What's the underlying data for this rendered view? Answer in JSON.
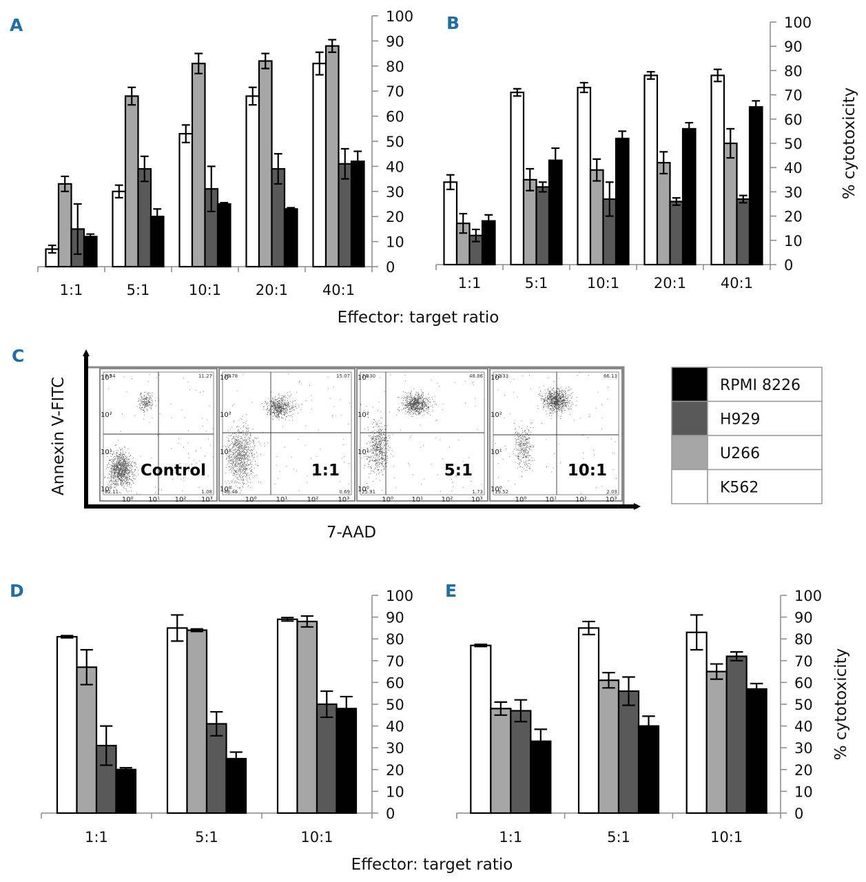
{
  "colors": {
    "K562": "#ffffff",
    "U266": "#a6a6a6",
    "H929": "#595959",
    "RPMI 8226": "#000000",
    "panel_letter": "#1f6ea8"
  },
  "shared_xlabel_top": "Effector: target ratio",
  "shared_xlabel_bottom": "Effector: target ratio",
  "chart_data": [
    {
      "panel": "A",
      "type": "bar",
      "ylim": [
        0,
        100
      ],
      "yticks": [
        0,
        10,
        20,
        30,
        40,
        50,
        60,
        70,
        80,
        90,
        100
      ],
      "categories": [
        "1:1",
        "5:1",
        "10:1",
        "20:1",
        "40:1"
      ],
      "ylabel": "",
      "series": [
        {
          "name": "K562",
          "values": [
            7,
            30,
            53,
            68,
            81
          ],
          "errors": [
            1.5,
            2.5,
            3.5,
            3.5,
            4.5
          ]
        },
        {
          "name": "U266",
          "values": [
            33,
            68,
            81,
            82,
            88
          ],
          "errors": [
            3,
            3.5,
            4,
            3,
            2.5
          ]
        },
        {
          "name": "H929",
          "values": [
            15,
            39,
            31,
            39,
            41
          ],
          "errors": [
            10,
            5,
            9,
            6,
            6
          ]
        },
        {
          "name": "RPMI 8226",
          "values": [
            12,
            20,
            25,
            23,
            42
          ],
          "errors": [
            1,
            3,
            0.5,
            0.5,
            4
          ]
        }
      ]
    },
    {
      "panel": "B",
      "type": "bar",
      "ylim": [
        0,
        100
      ],
      "yticks": [
        0,
        10,
        20,
        30,
        40,
        50,
        60,
        70,
        80,
        90,
        100
      ],
      "categories": [
        "1:1",
        "5:1",
        "10:1",
        "20:1",
        "40:1"
      ],
      "ylabel": "% cytotoxicity",
      "series": [
        {
          "name": "K562",
          "values": [
            34,
            71,
            73,
            78,
            78
          ],
          "errors": [
            3,
            1.5,
            2,
            1.5,
            2.5
          ]
        },
        {
          "name": "U266",
          "values": [
            17,
            35,
            39,
            42,
            50
          ],
          "errors": [
            4,
            4.5,
            4.5,
            4.5,
            6
          ]
        },
        {
          "name": "H929",
          "values": [
            12,
            32,
            27,
            26,
            27
          ],
          "errors": [
            2.5,
            2,
            7,
            1.5,
            1.5
          ]
        },
        {
          "name": "RPMI 8226",
          "values": [
            18,
            43,
            52,
            56,
            65
          ],
          "errors": [
            2.5,
            5,
            3,
            2.5,
            2.5
          ]
        }
      ]
    },
    {
      "panel": "D",
      "type": "bar",
      "ylim": [
        0,
        100
      ],
      "yticks": [
        0,
        10,
        20,
        30,
        40,
        50,
        60,
        70,
        80,
        90,
        100
      ],
      "categories": [
        "1:1",
        "5:1",
        "10:1"
      ],
      "ylabel": "",
      "series": [
        {
          "name": "K562",
          "values": [
            81,
            85,
            89
          ],
          "errors": [
            0.5,
            6,
            0.8
          ]
        },
        {
          "name": "U266",
          "values": [
            67,
            84,
            88
          ],
          "errors": [
            8,
            0.6,
            2.5
          ]
        },
        {
          "name": "H929",
          "values": [
            31,
            41,
            50
          ],
          "errors": [
            9,
            5.5,
            6
          ]
        },
        {
          "name": "RPMI 8226",
          "values": [
            20,
            25,
            48
          ],
          "errors": [
            0.8,
            3,
            5.5
          ]
        }
      ]
    },
    {
      "panel": "E",
      "type": "bar",
      "ylim": [
        0,
        100
      ],
      "yticks": [
        0,
        10,
        20,
        30,
        40,
        50,
        60,
        70,
        80,
        90,
        100
      ],
      "categories": [
        "1:1",
        "5:1",
        "10:1"
      ],
      "ylabel": "% cytotoxicity",
      "series": [
        {
          "name": "K562",
          "values": [
            77,
            85,
            83
          ],
          "errors": [
            0.5,
            3,
            8
          ]
        },
        {
          "name": "U266",
          "values": [
            48,
            61,
            65
          ],
          "errors": [
            3,
            3.5,
            3.5
          ]
        },
        {
          "name": "H929",
          "values": [
            47,
            56,
            72
          ],
          "errors": [
            5,
            6.5,
            2
          ]
        },
        {
          "name": "RPMI 8226",
          "values": [
            33,
            40,
            57
          ],
          "errors": [
            5.5,
            4.5,
            2.5
          ]
        }
      ]
    }
  ],
  "panel_c": {
    "letter": "C",
    "ylabel": "Annexin V-FITC",
    "xlabel": "7-AAD",
    "axis_tick_labels": [
      "10⁰",
      "10¹",
      "10²",
      "10³"
    ],
    "plots": [
      {
        "label": "Control",
        "q_ul": "8.54",
        "q_ur": "11.27",
        "q_ll": "82.11",
        "q_lr": "1.08"
      },
      {
        "label": "1:1",
        "q_ul": "35.78",
        "q_ur": "15.07",
        "q_ll": "48.46",
        "q_lr": "0.69"
      },
      {
        "label": "5:1",
        "q_ul": "24.30",
        "q_ur": "48.06",
        "q_ll": "25.91",
        "q_lr": "1.73"
      },
      {
        "label": "10:1",
        "q_ul": "12.33",
        "q_ur": "66.13",
        "q_ll": "19.52",
        "q_lr": "2.03"
      }
    ]
  },
  "legend": [
    "RPMI 8226",
    "H929",
    "U266",
    "K562"
  ]
}
